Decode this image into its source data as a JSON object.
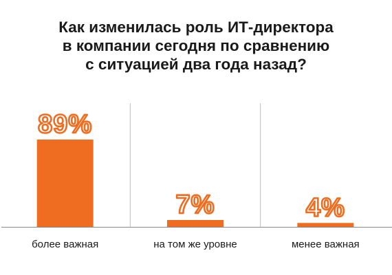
{
  "chart_data": {
    "type": "bar",
    "title_lines": [
      "Как изменилась роль ИТ-директора",
      "в компании сегодня по сравнению",
      "с ситуацией два года назад?"
    ],
    "categories": [
      "более важная",
      "на том же уровне",
      "менее важная"
    ],
    "values": [
      89,
      7,
      4
    ],
    "value_labels": [
      "89%",
      "7%",
      "4%"
    ],
    "ylim": [
      0,
      100
    ],
    "grid": false,
    "legend": "none",
    "bar_color": "#ee6d20",
    "divider_color": "#bdbdbd",
    "baseline_color": "#8a8a8a"
  }
}
